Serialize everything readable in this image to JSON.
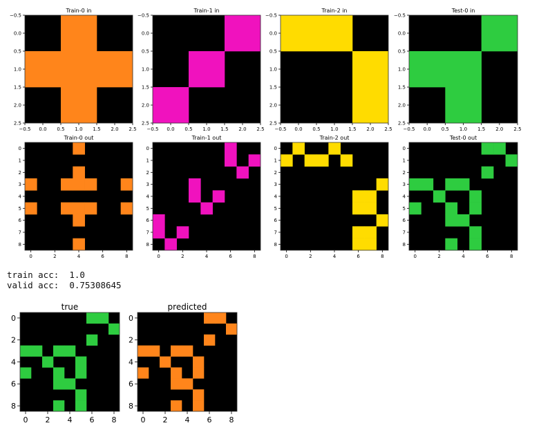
{
  "colors": {
    "bg": "#000000",
    "orange": "#FF851B",
    "magenta": "#F012BE",
    "yellow": "#FFDC00",
    "green": "#2ECC40"
  },
  "metrics": {
    "train_label": "train acc:",
    "train_value": "1.0",
    "valid_label": "valid acc:",
    "valid_value": "0.75308645"
  },
  "chart_data": [
    {
      "type": "heatmap",
      "title": "Train-0 in",
      "rows": 3,
      "cols": 3,
      "xticks": [
        "−0.5",
        "0.0",
        "0.5",
        "1.0",
        "1.5",
        "2.0",
        "2.5"
      ],
      "yticks": [
        "−0.5",
        "0.0",
        "0.5",
        "1.0",
        "1.5",
        "2.0",
        "2.5"
      ],
      "color": "orange",
      "cells": [
        "010",
        "111",
        "010"
      ]
    },
    {
      "type": "heatmap",
      "title": "Train-1 in",
      "rows": 3,
      "cols": 3,
      "xticks": [
        "−0.5",
        "0.0",
        "0.5",
        "1.0",
        "1.5",
        "2.0",
        "2.5"
      ],
      "yticks": [
        "−0.5",
        "0.0",
        "0.5",
        "1.0",
        "1.5",
        "2.0",
        "2.5"
      ],
      "color": "magenta",
      "cells": [
        "001",
        "010",
        "100"
      ]
    },
    {
      "type": "heatmap",
      "title": "Train-2 in",
      "rows": 3,
      "cols": 3,
      "xticks": [
        "−0.5",
        "0.0",
        "0.5",
        "1.0",
        "1.5",
        "2.0",
        "2.5"
      ],
      "yticks": [
        "−0.5",
        "0.0",
        "0.5",
        "1.0",
        "1.5",
        "2.0",
        "2.5"
      ],
      "color": "yellow",
      "cells": [
        "110",
        "001",
        "001"
      ]
    },
    {
      "type": "heatmap",
      "title": "Test-0 in",
      "rows": 3,
      "cols": 3,
      "xticks": [
        "−0.5",
        "0.0",
        "0.5",
        "1.0",
        "1.5",
        "2.0",
        "2.5"
      ],
      "yticks": [
        "−0.5",
        "0.0",
        "0.5",
        "1.0",
        "1.5",
        "2.0",
        "2.5"
      ],
      "color": "green",
      "cells": [
        "001",
        "110",
        "010"
      ]
    },
    {
      "type": "heatmap",
      "title": "Train-0 out",
      "rows": 9,
      "cols": 9,
      "xticks": [
        "0",
        "2",
        "4",
        "6",
        "8"
      ],
      "yticks": [
        "0",
        "1",
        "2",
        "3",
        "4",
        "5",
        "6",
        "7",
        "8"
      ],
      "color": "orange",
      "cells": [
        "000010000",
        "000000000",
        "000010000",
        "100111001",
        "000000000",
        "100111001",
        "000010000",
        "000000000",
        "000010000"
      ]
    },
    {
      "type": "heatmap",
      "title": "Train-1 out",
      "rows": 9,
      "cols": 9,
      "xticks": [
        "0",
        "2",
        "4",
        "6",
        "8"
      ],
      "yticks": [
        "0",
        "1",
        "2",
        "3",
        "4",
        "5",
        "6",
        "7",
        "8"
      ],
      "color": "magenta",
      "cells": [
        "000000100",
        "000000101",
        "000000010",
        "000100000",
        "000101000",
        "000010000",
        "100000000",
        "101000000",
        "010000000"
      ]
    },
    {
      "type": "heatmap",
      "title": "Train-2 out",
      "rows": 9,
      "cols": 9,
      "xticks": [
        "0",
        "2",
        "4",
        "6",
        "8"
      ],
      "yticks": [
        "0",
        "1",
        "2",
        "3",
        "4",
        "5",
        "6",
        "7",
        "8"
      ],
      "color": "yellow",
      "cells": [
        "010010000",
        "101101000",
        "000000000",
        "000000001",
        "000000110",
        "000000110",
        "000000001",
        "000000110",
        "000000110"
      ]
    },
    {
      "type": "heatmap",
      "title": "Test-0 out",
      "rows": 9,
      "cols": 9,
      "xticks": [
        "0",
        "2",
        "4",
        "6",
        "8"
      ],
      "yticks": [
        "0",
        "1",
        "2",
        "3",
        "4",
        "5",
        "6",
        "7",
        "8"
      ],
      "color": "green",
      "cells": [
        "000000110",
        "000000001",
        "000000100",
        "110110000",
        "001001000",
        "100101000",
        "000110000",
        "000001000",
        "000101000"
      ]
    },
    {
      "type": "heatmap",
      "title": "true",
      "rows": 9,
      "cols": 9,
      "xticks": [
        "0",
        "2",
        "4",
        "6",
        "8"
      ],
      "yticks": [
        "0",
        "2",
        "4",
        "6",
        "8"
      ],
      "color": "green",
      "cells": [
        "000000110",
        "000000001",
        "000000100",
        "110110000",
        "001001000",
        "100101000",
        "000110000",
        "000001000",
        "000101000"
      ]
    },
    {
      "type": "heatmap",
      "title": "predicted",
      "rows": 9,
      "cols": 9,
      "xticks": [
        "0",
        "2",
        "4",
        "6",
        "8"
      ],
      "yticks": [
        "0",
        "2",
        "4",
        "6",
        "8"
      ],
      "color": "orange",
      "cells": [
        "000000110",
        "000000001",
        "000000100",
        "110110000",
        "001001000",
        "100101000",
        "000110000",
        "000001000",
        "000101000"
      ]
    }
  ]
}
